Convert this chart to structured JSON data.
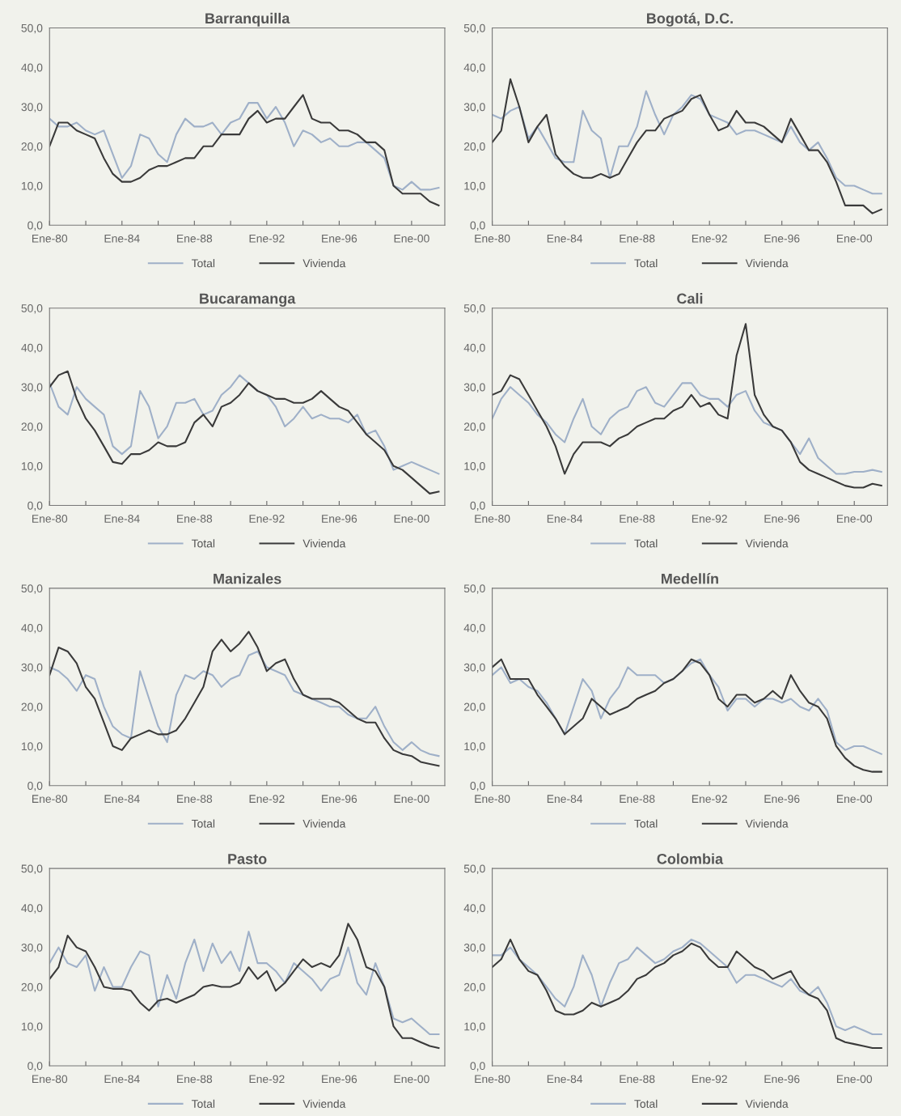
{
  "chart_data": [
    {
      "type": "line",
      "title": "Barranquilla",
      "legend": "bottom",
      "grid": false,
      "x": [
        "1980-01",
        "1980-07",
        "1981-01",
        "1981-07",
        "1982-01",
        "1982-07",
        "1983-01",
        "1983-07",
        "1984-01",
        "1984-07",
        "1985-01",
        "1985-07",
        "1986-01",
        "1986-07",
        "1987-01",
        "1987-07",
        "1988-01",
        "1988-07",
        "1989-01",
        "1989-07",
        "1990-01",
        "1990-07",
        "1991-01",
        "1991-07",
        "1992-01",
        "1992-07",
        "1993-01",
        "1993-07",
        "1994-01",
        "1994-07",
        "1995-01",
        "1995-07",
        "1996-01",
        "1996-07",
        "1997-01",
        "1997-07",
        "1998-01",
        "1998-07",
        "1999-01",
        "1999-07",
        "2000-01",
        "2000-07",
        "2001-01",
        "2001-07"
      ],
      "xlim": [
        "1980-01",
        "2001-11"
      ],
      "xticks": [
        {
          "value": "1980-01",
          "label": "Ene-80"
        },
        {
          "value": "1982-01",
          "label": null
        },
        {
          "value": "1984-01",
          "label": "Ene-84"
        },
        {
          "value": "1986-01",
          "label": null
        },
        {
          "value": "1988-01",
          "label": "Ene-88"
        },
        {
          "value": "1990-01",
          "label": null
        },
        {
          "value": "1992-01",
          "label": "Ene-92"
        },
        {
          "value": "1994-01",
          "label": null
        },
        {
          "value": "1996-01",
          "label": "Ene-96"
        },
        {
          "value": "1998-01",
          "label": null
        },
        {
          "value": "2000-01",
          "label": "Ene-00"
        }
      ],
      "ylim": [
        0,
        50
      ],
      "yticks": [
        {
          "value": 0,
          "label": "0,0"
        },
        {
          "value": 10,
          "label": "10,0"
        },
        {
          "value": 20,
          "label": "20,0"
        },
        {
          "value": 30,
          "label": "30,0"
        },
        {
          "value": 40,
          "label": "40,0"
        },
        {
          "value": 50,
          "label": "50,0"
        }
      ],
      "series": [
        {
          "name": "Total",
          "color": "#9fb0c8",
          "values": [
            27,
            25,
            25,
            26,
            24,
            23,
            24,
            18,
            12,
            15,
            23,
            22,
            18,
            16,
            23,
            27,
            25,
            25,
            26,
            23,
            26,
            27,
            31,
            31,
            27,
            30,
            26,
            20,
            24,
            23,
            21,
            22,
            20,
            20,
            21,
            21,
            19,
            17,
            10,
            9,
            11,
            9,
            9,
            9.5
          ]
        },
        {
          "name": "Vivienda",
          "color": "#3a3a3a",
          "values": [
            20,
            26,
            26,
            24,
            23,
            22,
            17,
            13,
            11,
            11,
            12,
            14,
            15,
            15,
            16,
            17,
            17,
            20,
            20,
            23,
            23,
            23,
            27,
            29,
            26,
            27,
            27,
            30,
            33,
            27,
            26,
            26,
            24,
            24,
            23,
            21,
            21,
            19,
            10,
            8,
            8,
            8,
            6,
            5
          ]
        }
      ]
    },
    {
      "type": "line",
      "title": "Bogotá, D.C.",
      "legend": "bottom",
      "grid": false,
      "x": [
        "1980-01",
        "1980-07",
        "1981-01",
        "1981-07",
        "1982-01",
        "1982-07",
        "1983-01",
        "1983-07",
        "1984-01",
        "1984-07",
        "1985-01",
        "1985-07",
        "1986-01",
        "1986-07",
        "1987-01",
        "1987-07",
        "1988-01",
        "1988-07",
        "1989-01",
        "1989-07",
        "1990-01",
        "1990-07",
        "1991-01",
        "1991-07",
        "1992-01",
        "1992-07",
        "1993-01",
        "1993-07",
        "1994-01",
        "1994-07",
        "1995-01",
        "1995-07",
        "1996-01",
        "1996-07",
        "1997-01",
        "1997-07",
        "1998-01",
        "1998-07",
        "1999-01",
        "1999-07",
        "2000-01",
        "2000-07",
        "2001-01",
        "2001-07"
      ],
      "xlim": [
        "1980-01",
        "2001-11"
      ],
      "xticks": [
        {
          "value": "1980-01",
          "label": "Ene-80"
        },
        {
          "value": "1982-01",
          "label": null
        },
        {
          "value": "1984-01",
          "label": "Ene-84"
        },
        {
          "value": "1986-01",
          "label": null
        },
        {
          "value": "1988-01",
          "label": "Ene-88"
        },
        {
          "value": "1990-01",
          "label": null
        },
        {
          "value": "1992-01",
          "label": "Ene-92"
        },
        {
          "value": "1994-01",
          "label": null
        },
        {
          "value": "1996-01",
          "label": "Ene-96"
        },
        {
          "value": "1998-01",
          "label": null
        },
        {
          "value": "2000-01",
          "label": "Ene-00"
        }
      ],
      "ylim": [
        0,
        50
      ],
      "yticks": [
        {
          "value": 0,
          "label": "0,0"
        },
        {
          "value": 10,
          "label": "10,0"
        },
        {
          "value": 20,
          "label": "20,0"
        },
        {
          "value": 30,
          "label": "30,0"
        },
        {
          "value": 40,
          "label": "40,0"
        },
        {
          "value": 50,
          "label": "50,0"
        }
      ],
      "series": [
        {
          "name": "Total",
          "color": "#9fb0c8",
          "values": [
            28,
            27,
            29,
            30,
            22,
            25,
            21,
            17,
            16,
            16,
            29,
            24,
            22,
            12,
            20,
            20,
            25,
            34,
            28,
            23,
            28,
            30,
            33,
            32,
            28,
            27,
            26,
            23,
            24,
            24,
            23,
            22,
            21,
            25,
            21,
            19,
            21,
            17,
            12,
            10,
            10,
            9,
            8,
            8
          ]
        },
        {
          "name": "Vivienda",
          "color": "#3a3a3a",
          "values": [
            21,
            24,
            37,
            30,
            21,
            25,
            28,
            18,
            15,
            13,
            12,
            12,
            13,
            12,
            13,
            17,
            21,
            24,
            24,
            27,
            28,
            29,
            32,
            33,
            28,
            24,
            25,
            29,
            26,
            26,
            25,
            23,
            21,
            27,
            23,
            19,
            19,
            16,
            11,
            5,
            5,
            5,
            3,
            4
          ]
        }
      ]
    },
    {
      "type": "line",
      "title": "Bucaramanga",
      "legend": "bottom",
      "grid": false,
      "x": [
        "1980-01",
        "1980-07",
        "1981-01",
        "1981-07",
        "1982-01",
        "1982-07",
        "1983-01",
        "1983-07",
        "1984-01",
        "1984-07",
        "1985-01",
        "1985-07",
        "1986-01",
        "1986-07",
        "1987-01",
        "1987-07",
        "1988-01",
        "1988-07",
        "1989-01",
        "1989-07",
        "1990-01",
        "1990-07",
        "1991-01",
        "1991-07",
        "1992-01",
        "1992-07",
        "1993-01",
        "1993-07",
        "1994-01",
        "1994-07",
        "1995-01",
        "1995-07",
        "1996-01",
        "1996-07",
        "1997-01",
        "1997-07",
        "1998-01",
        "1998-07",
        "1999-01",
        "1999-07",
        "2000-01",
        "2000-07",
        "2001-01",
        "2001-07"
      ],
      "xlim": [
        "1980-01",
        "2001-11"
      ],
      "xticks": [
        {
          "value": "1980-01",
          "label": "Ene-80"
        },
        {
          "value": "1982-01",
          "label": null
        },
        {
          "value": "1984-01",
          "label": "Ene-84"
        },
        {
          "value": "1986-01",
          "label": null
        },
        {
          "value": "1988-01",
          "label": "Ene-88"
        },
        {
          "value": "1990-01",
          "label": null
        },
        {
          "value": "1992-01",
          "label": "Ene-92"
        },
        {
          "value": "1994-01",
          "label": null
        },
        {
          "value": "1996-01",
          "label": "Ene-96"
        },
        {
          "value": "1998-01",
          "label": null
        },
        {
          "value": "2000-01",
          "label": "Ene-00"
        }
      ],
      "ylim": [
        0,
        50
      ],
      "yticks": [
        {
          "value": 0,
          "label": "0,0"
        },
        {
          "value": 10,
          "label": "10,0"
        },
        {
          "value": 20,
          "label": "20,0"
        },
        {
          "value": 30,
          "label": "30,0"
        },
        {
          "value": 40,
          "label": "40,0"
        },
        {
          "value": 50,
          "label": "50,0"
        }
      ],
      "series": [
        {
          "name": "Total",
          "color": "#9fb0c8",
          "values": [
            31,
            25,
            23,
            30,
            27,
            25,
            23,
            15,
            13,
            15,
            29,
            25,
            17,
            20,
            26,
            26,
            27,
            23,
            24,
            28,
            30,
            33,
            31,
            29,
            28,
            25,
            20,
            22,
            25,
            22,
            23,
            22,
            22,
            21,
            23,
            18,
            19,
            15,
            9,
            10,
            11,
            10,
            9,
            8
          ]
        },
        {
          "name": "Vivienda",
          "color": "#3a3a3a",
          "values": [
            30,
            33,
            34,
            27,
            22,
            19,
            15,
            11,
            10.5,
            13,
            13,
            14,
            16,
            15,
            15,
            16,
            21,
            23,
            20,
            25,
            26,
            28,
            31,
            29,
            28,
            27,
            27,
            26,
            26,
            27,
            29,
            27,
            25,
            24,
            21,
            18,
            16,
            14,
            10,
            9,
            7,
            5,
            3,
            3.5
          ]
        }
      ]
    },
    {
      "type": "line",
      "title": "Cali",
      "legend": "bottom",
      "grid": false,
      "x": [
        "1980-01",
        "1980-07",
        "1981-01",
        "1981-07",
        "1982-01",
        "1982-07",
        "1983-01",
        "1983-07",
        "1984-01",
        "1984-07",
        "1985-01",
        "1985-07",
        "1986-01",
        "1986-07",
        "1987-01",
        "1987-07",
        "1988-01",
        "1988-07",
        "1989-01",
        "1989-07",
        "1990-01",
        "1990-07",
        "1991-01",
        "1991-07",
        "1992-01",
        "1992-07",
        "1993-01",
        "1993-07",
        "1994-01",
        "1994-07",
        "1995-01",
        "1995-07",
        "1996-01",
        "1996-07",
        "1997-01",
        "1997-07",
        "1998-01",
        "1998-07",
        "1999-01",
        "1999-07",
        "2000-01",
        "2000-07",
        "2001-01",
        "2001-07"
      ],
      "xlim": [
        "1980-01",
        "2001-11"
      ],
      "xticks": [
        {
          "value": "1980-01",
          "label": "Ene-80"
        },
        {
          "value": "1982-01",
          "label": null
        },
        {
          "value": "1984-01",
          "label": "Ene-84"
        },
        {
          "value": "1986-01",
          "label": null
        },
        {
          "value": "1988-01",
          "label": "Ene-88"
        },
        {
          "value": "1990-01",
          "label": null
        },
        {
          "value": "1992-01",
          "label": "Ene-92"
        },
        {
          "value": "1994-01",
          "label": null
        },
        {
          "value": "1996-01",
          "label": "Ene-96"
        },
        {
          "value": "1998-01",
          "label": null
        },
        {
          "value": "2000-01",
          "label": "Ene-00"
        }
      ],
      "ylim": [
        0,
        50
      ],
      "yticks": [
        {
          "value": 0,
          "label": "0,0"
        },
        {
          "value": 10,
          "label": "10,0"
        },
        {
          "value": 20,
          "label": "20,0"
        },
        {
          "value": 30,
          "label": "30,0"
        },
        {
          "value": 40,
          "label": "40,0"
        },
        {
          "value": 50,
          "label": "50,0"
        }
      ],
      "series": [
        {
          "name": "Total",
          "color": "#9fb0c8",
          "values": [
            22,
            27,
            30,
            28,
            26,
            23,
            21,
            18,
            16,
            22,
            27,
            20,
            18,
            22,
            24,
            25,
            29,
            30,
            26,
            25,
            28,
            31,
            31,
            28,
            27,
            27,
            25,
            28,
            29,
            24,
            21,
            20,
            19,
            16,
            13,
            17,
            12,
            10,
            8,
            8,
            8.5,
            8.5,
            9,
            8.5
          ]
        },
        {
          "name": "Vivienda",
          "color": "#3a3a3a",
          "values": [
            28,
            29,
            33,
            32,
            28,
            24,
            20,
            15,
            8,
            13,
            16,
            16,
            16,
            15,
            17,
            18,
            20,
            21,
            22,
            22,
            24,
            25,
            28,
            25,
            26,
            23,
            22,
            38,
            46,
            28,
            23,
            20,
            19,
            16,
            11,
            9,
            8,
            7,
            6,
            5,
            4.5,
            4.5,
            5.5,
            5
          ]
        }
      ]
    },
    {
      "type": "line",
      "title": "Manizales",
      "legend": "bottom",
      "grid": false,
      "x": [
        "1980-01",
        "1980-07",
        "1981-01",
        "1981-07",
        "1982-01",
        "1982-07",
        "1983-01",
        "1983-07",
        "1984-01",
        "1984-07",
        "1985-01",
        "1985-07",
        "1986-01",
        "1986-07",
        "1987-01",
        "1987-07",
        "1988-01",
        "1988-07",
        "1989-01",
        "1989-07",
        "1990-01",
        "1990-07",
        "1991-01",
        "1991-07",
        "1992-01",
        "1992-07",
        "1993-01",
        "1993-07",
        "1994-01",
        "1994-07",
        "1995-01",
        "1995-07",
        "1996-01",
        "1996-07",
        "1997-01",
        "1997-07",
        "1998-01",
        "1998-07",
        "1999-01",
        "1999-07",
        "2000-01",
        "2000-07",
        "2001-01",
        "2001-07"
      ],
      "xlim": [
        "1980-01",
        "2001-11"
      ],
      "xticks": [
        {
          "value": "1980-01",
          "label": "Ene-80"
        },
        {
          "value": "1982-01",
          "label": null
        },
        {
          "value": "1984-01",
          "label": "Ene-84"
        },
        {
          "value": "1986-01",
          "label": null
        },
        {
          "value": "1988-01",
          "label": "Ene-88"
        },
        {
          "value": "1990-01",
          "label": null
        },
        {
          "value": "1992-01",
          "label": "Ene-92"
        },
        {
          "value": "1994-01",
          "label": null
        },
        {
          "value": "1996-01",
          "label": "Ene-96"
        },
        {
          "value": "1998-01",
          "label": null
        },
        {
          "value": "2000-01",
          "label": "Ene-00"
        }
      ],
      "ylim": [
        0,
        50
      ],
      "yticks": [
        {
          "value": 0,
          "label": "0,0"
        },
        {
          "value": 10,
          "label": "10,0"
        },
        {
          "value": 20,
          "label": "20,0"
        },
        {
          "value": 30,
          "label": "30,0"
        },
        {
          "value": 40,
          "label": "40,0"
        },
        {
          "value": 50,
          "label": "50,0"
        }
      ],
      "series": [
        {
          "name": "Total",
          "color": "#9fb0c8",
          "values": [
            30,
            29,
            27,
            24,
            28,
            27,
            20,
            15,
            13,
            12,
            29,
            22,
            15,
            11,
            23,
            28,
            27,
            29,
            28,
            25,
            27,
            28,
            33,
            34,
            30,
            29,
            28,
            24,
            23,
            22,
            21,
            20,
            20,
            18,
            17,
            17,
            20,
            15,
            11,
            9,
            11,
            9,
            8,
            7.5
          ]
        },
        {
          "name": "Vivienda",
          "color": "#3a3a3a",
          "values": [
            28,
            35,
            34,
            31,
            25,
            22,
            16,
            10,
            9,
            12,
            13,
            14,
            13,
            13,
            14,
            17,
            21,
            25,
            34,
            37,
            34,
            36,
            39,
            35,
            29,
            31,
            32,
            27,
            23,
            22,
            22,
            22,
            21,
            19,
            17,
            16,
            16,
            12,
            9,
            8,
            7.5,
            6,
            5.5,
            5
          ]
        }
      ]
    },
    {
      "type": "line",
      "title": "Medellín",
      "legend": "bottom",
      "grid": false,
      "x": [
        "1980-01",
        "1980-07",
        "1981-01",
        "1981-07",
        "1982-01",
        "1982-07",
        "1983-01",
        "1983-07",
        "1984-01",
        "1984-07",
        "1985-01",
        "1985-07",
        "1986-01",
        "1986-07",
        "1987-01",
        "1987-07",
        "1988-01",
        "1988-07",
        "1989-01",
        "1989-07",
        "1990-01",
        "1990-07",
        "1991-01",
        "1991-07",
        "1992-01",
        "1992-07",
        "1993-01",
        "1993-07",
        "1994-01",
        "1994-07",
        "1995-01",
        "1995-07",
        "1996-01",
        "1996-07",
        "1997-01",
        "1997-07",
        "1998-01",
        "1998-07",
        "1999-01",
        "1999-07",
        "2000-01",
        "2000-07",
        "2001-01",
        "2001-07"
      ],
      "xlim": [
        "1980-01",
        "2001-11"
      ],
      "xticks": [
        {
          "value": "1980-01",
          "label": "Ene-80"
        },
        {
          "value": "1982-01",
          "label": null
        },
        {
          "value": "1984-01",
          "label": "Ene-84"
        },
        {
          "value": "1986-01",
          "label": null
        },
        {
          "value": "1988-01",
          "label": "Ene-88"
        },
        {
          "value": "1990-01",
          "label": null
        },
        {
          "value": "1992-01",
          "label": "Ene-92"
        },
        {
          "value": "1994-01",
          "label": null
        },
        {
          "value": "1996-01",
          "label": "Ene-96"
        },
        {
          "value": "1998-01",
          "label": null
        },
        {
          "value": "2000-01",
          "label": "Ene-00"
        }
      ],
      "ylim": [
        0,
        50
      ],
      "yticks": [
        {
          "value": 0,
          "label": "0,0"
        },
        {
          "value": 10,
          "label": "10,0"
        },
        {
          "value": 20,
          "label": "20,0"
        },
        {
          "value": 30,
          "label": "30,0"
        },
        {
          "value": 40,
          "label": "40,0"
        },
        {
          "value": 50,
          "label": "50,0"
        }
      ],
      "series": [
        {
          "name": "Total",
          "color": "#9fb0c8",
          "values": [
            28,
            30,
            26,
            27,
            25,
            24,
            21,
            17,
            13,
            20,
            27,
            24,
            17,
            22,
            25,
            30,
            28,
            28,
            28,
            26,
            27,
            29,
            31,
            32,
            28,
            25,
            19,
            22,
            22,
            20,
            22,
            22,
            21,
            22,
            20,
            19,
            22,
            19,
            11,
            9,
            10,
            10,
            9,
            8
          ]
        },
        {
          "name": "Vivienda",
          "color": "#3a3a3a",
          "values": [
            30,
            32,
            27,
            27,
            27,
            23,
            20,
            17,
            13,
            15,
            17,
            22,
            20,
            18,
            19,
            20,
            22,
            23,
            24,
            26,
            27,
            29,
            32,
            31,
            28,
            22,
            20,
            23,
            23,
            21,
            22,
            24,
            22,
            28,
            24,
            21,
            20,
            17,
            10,
            7,
            5,
            4,
            3.5,
            3.5
          ]
        }
      ]
    },
    {
      "type": "line",
      "title": "Pasto",
      "legend": "bottom",
      "grid": false,
      "x": [
        "1980-01",
        "1980-07",
        "1981-01",
        "1981-07",
        "1982-01",
        "1982-07",
        "1983-01",
        "1983-07",
        "1984-01",
        "1984-07",
        "1985-01",
        "1985-07",
        "1986-01",
        "1986-07",
        "1987-01",
        "1987-07",
        "1988-01",
        "1988-07",
        "1989-01",
        "1989-07",
        "1990-01",
        "1990-07",
        "1991-01",
        "1991-07",
        "1992-01",
        "1992-07",
        "1993-01",
        "1993-07",
        "1994-01",
        "1994-07",
        "1995-01",
        "1995-07",
        "1996-01",
        "1996-07",
        "1997-01",
        "1997-07",
        "1998-01",
        "1998-07",
        "1999-01",
        "1999-07",
        "2000-01",
        "2000-07",
        "2001-01",
        "2001-07"
      ],
      "xlim": [
        "1980-01",
        "2001-11"
      ],
      "xticks": [
        {
          "value": "1980-01",
          "label": "Ene-80"
        },
        {
          "value": "1982-01",
          "label": null
        },
        {
          "value": "1984-01",
          "label": "Ene-84"
        },
        {
          "value": "1986-01",
          "label": null
        },
        {
          "value": "1988-01",
          "label": "Ene-88"
        },
        {
          "value": "1990-01",
          "label": null
        },
        {
          "value": "1992-01",
          "label": "Ene-92"
        },
        {
          "value": "1994-01",
          "label": null
        },
        {
          "value": "1996-01",
          "label": "Ene-96"
        },
        {
          "value": "1998-01",
          "label": null
        },
        {
          "value": "2000-01",
          "label": "Ene-00"
        }
      ],
      "ylim": [
        0,
        50
      ],
      "yticks": [
        {
          "value": 0,
          "label": "0,0"
        },
        {
          "value": 10,
          "label": "10,0"
        },
        {
          "value": 20,
          "label": "20,0"
        },
        {
          "value": 30,
          "label": "30,0"
        },
        {
          "value": 40,
          "label": "40,0"
        },
        {
          "value": 50,
          "label": "50,0"
        }
      ],
      "series": [
        {
          "name": "Total",
          "color": "#9fb0c8",
          "values": [
            26,
            30,
            26,
            25,
            28,
            19,
            25,
            20,
            20,
            25,
            29,
            28,
            15,
            23,
            17,
            26,
            32,
            24,
            31,
            26,
            29,
            24,
            34,
            26,
            26,
            24,
            21,
            26,
            24,
            22,
            19,
            22,
            23,
            30,
            21,
            18,
            26,
            20,
            12,
            11,
            12,
            10,
            8,
            8
          ]
        },
        {
          "name": "Vivienda",
          "color": "#3a3a3a",
          "values": [
            22,
            25,
            33,
            30,
            29,
            25,
            20,
            19.5,
            19.5,
            19,
            16,
            14,
            16.5,
            17,
            16,
            17,
            18,
            20,
            20.5,
            20,
            20,
            21,
            25,
            22,
            24,
            19,
            21,
            24,
            27,
            25,
            26,
            25,
            28,
            36,
            32,
            25,
            24,
            20,
            10,
            7,
            7,
            6,
            5,
            4.5
          ]
        }
      ]
    },
    {
      "type": "line",
      "title": "Colombia",
      "legend": "bottom",
      "grid": false,
      "x": [
        "1980-01",
        "1980-07",
        "1981-01",
        "1981-07",
        "1982-01",
        "1982-07",
        "1983-01",
        "1983-07",
        "1984-01",
        "1984-07",
        "1985-01",
        "1985-07",
        "1986-01",
        "1986-07",
        "1987-01",
        "1987-07",
        "1988-01",
        "1988-07",
        "1989-01",
        "1989-07",
        "1990-01",
        "1990-07",
        "1991-01",
        "1991-07",
        "1992-01",
        "1992-07",
        "1993-01",
        "1993-07",
        "1994-01",
        "1994-07",
        "1995-01",
        "1995-07",
        "1996-01",
        "1996-07",
        "1997-01",
        "1997-07",
        "1998-01",
        "1998-07",
        "1999-01",
        "1999-07",
        "2000-01",
        "2000-07",
        "2001-01",
        "2001-07"
      ],
      "xlim": [
        "1980-01",
        "2001-11"
      ],
      "xticks": [
        {
          "value": "1980-01",
          "label": "Ene-80"
        },
        {
          "value": "1982-01",
          "label": null
        },
        {
          "value": "1984-01",
          "label": "Ene-84"
        },
        {
          "value": "1986-01",
          "label": null
        },
        {
          "value": "1988-01",
          "label": "Ene-88"
        },
        {
          "value": "1990-01",
          "label": null
        },
        {
          "value": "1992-01",
          "label": "Ene-92"
        },
        {
          "value": "1994-01",
          "label": null
        },
        {
          "value": "1996-01",
          "label": "Ene-96"
        },
        {
          "value": "1998-01",
          "label": null
        },
        {
          "value": "2000-01",
          "label": "Ene-00"
        }
      ],
      "ylim": [
        0,
        50
      ],
      "yticks": [
        {
          "value": 0,
          "label": "0,0"
        },
        {
          "value": 10,
          "label": "10,0"
        },
        {
          "value": 20,
          "label": "20,0"
        },
        {
          "value": 30,
          "label": "30,0"
        },
        {
          "value": 40,
          "label": "40,0"
        },
        {
          "value": 50,
          "label": "50,0"
        }
      ],
      "series": [
        {
          "name": "Total",
          "color": "#9fb0c8",
          "values": [
            28,
            28,
            30,
            27,
            25,
            23,
            20,
            17,
            15,
            20,
            28,
            23,
            15,
            21,
            26,
            27,
            30,
            28,
            26,
            27,
            29,
            30,
            32,
            31,
            29,
            27,
            25,
            21,
            23,
            23,
            22,
            21,
            20,
            22,
            19,
            18,
            20,
            16,
            10,
            9,
            10,
            9,
            8,
            8
          ]
        },
        {
          "name": "Vivienda",
          "color": "#3a3a3a",
          "values": [
            25,
            27,
            32,
            27,
            24,
            23,
            19,
            14,
            13,
            13,
            14,
            16,
            15,
            16,
            17,
            19,
            22,
            23,
            25,
            26,
            28,
            29,
            31,
            30,
            27,
            25,
            25,
            29,
            27,
            25,
            24,
            22,
            23,
            24,
            20,
            18,
            17,
            14,
            7,
            6,
            5.5,
            5,
            4.5,
            4.5
          ]
        }
      ]
    }
  ]
}
